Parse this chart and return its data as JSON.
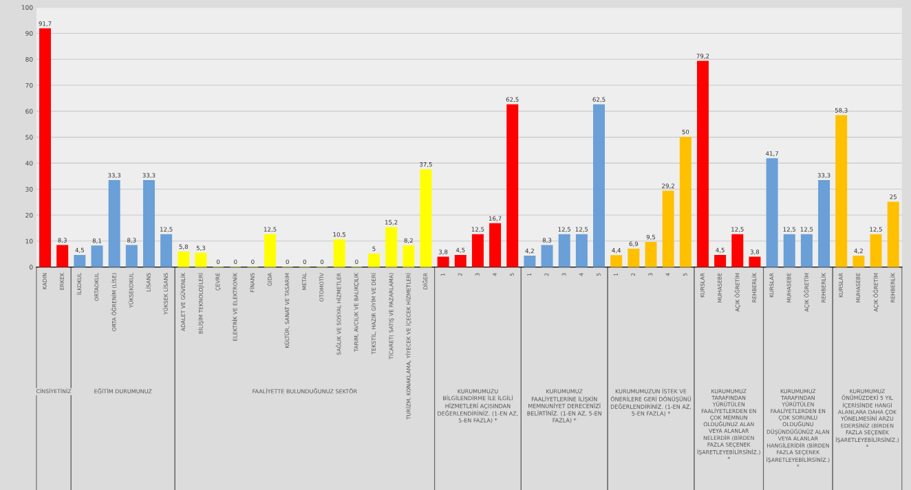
{
  "chart_data": {
    "type": "bar",
    "categories": [
      "KADIN",
      "ERKEK",
      "İLKOKUL",
      "ORTAOKUL",
      "ORTA ÖĞRENİM (LİSE)",
      "YÜKSEKOKUL",
      "LİSANS",
      "YÜKSEK LİSANS",
      "ADALET VE GÜVENLİK",
      "BİLİŞİM TEKNOLOJİLERİ",
      "ÇEVRE",
      "ELEKTRİK VE ELEKTRONİK",
      "FİNANS",
      "GIDA",
      "KÜLTÜR, SANAT VE TASARIM",
      "METAL",
      "OTOMOTİV",
      "SAĞLIK VE SOSYAL HİZMETLER",
      "TARIM, AVCILIK VE BALIKÇILIK",
      "TEKSTİL, HAZIR GİYİM VE DERİ",
      "TİCARET( SATIŞ VE PAZARLAMA)",
      "TURİZM, KONAKLAMA, YİYECEK VE İÇECEK HİZMETLERİ",
      "DİĞER",
      "1",
      "2",
      "3",
      "4",
      "5",
      "1",
      "2",
      "3",
      "4",
      "5",
      "1",
      "2",
      "3",
      "4",
      "5",
      "KURSLAR",
      "MUHASEBE",
      "AÇIK ÖĞRETİM",
      "REHBERLİK",
      "KURSLAR",
      "MUHASEBE",
      "AÇIK ÖĞRETİM",
      "REHBERLİK",
      "KURSLAR",
      "MUHASEBE",
      "AÇIK ÖĞRETİM",
      "REHBERLİK"
    ],
    "values": [
      91.7,
      8.3,
      4.5,
      8.1,
      33.3,
      8.3,
      33.3,
      12.5,
      5.8,
      5.3,
      0,
      0,
      0,
      12.5,
      0,
      0,
      0,
      10.5,
      0,
      5,
      15.2,
      8.2,
      37.5,
      3.8,
      4.5,
      12.5,
      16.7,
      62.5,
      4.2,
      8.3,
      12.5,
      12.5,
      62.5,
      4.4,
      6.9,
      9.5,
      29.2,
      50,
      79.2,
      4.5,
      12.5,
      3.8,
      41.7,
      12.5,
      12.5,
      33.3,
      58.3,
      4.2,
      12.5,
      25
    ],
    "value_labels": [
      "91,7",
      "8,3",
      "4,5",
      "8,1",
      "33,3",
      "8,3",
      "33,3",
      "12,5",
      "5,8",
      "5,3",
      "0",
      "0",
      "0",
      "12,5",
      "0",
      "0",
      "0",
      "10,5",
      "0",
      "5",
      "15,2",
      "8,2",
      "37,5",
      "3,8",
      "4,5",
      "12,5",
      "16,7",
      "62,5",
      "4,2",
      "8,3",
      "12,5",
      "12,5",
      "62,5",
      "4,4",
      "6,9",
      "9,5",
      "29,2",
      "50",
      "79,2",
      "4,5",
      "12,5",
      "3,8",
      "41,7",
      "12,5",
      "12,5",
      "33,3",
      "58,3",
      "4,2",
      "12,5",
      "25"
    ],
    "colors": [
      "#ff0000",
      "#ff0000",
      "#6a9fd8",
      "#6a9fd8",
      "#6a9fd8",
      "#6a9fd8",
      "#6a9fd8",
      "#6a9fd8",
      "#ffff00",
      "#ffff00",
      "#ffff00",
      "#ffff00",
      "#ffff00",
      "#ffff00",
      "#ffff00",
      "#ffff00",
      "#ffff00",
      "#ffff00",
      "#ffff00",
      "#ffff00",
      "#ffff00",
      "#ffff00",
      "#ffff00",
      "#ff0000",
      "#ff0000",
      "#ff0000",
      "#ff0000",
      "#ff0000",
      "#6a9fd8",
      "#6a9fd8",
      "#6a9fd8",
      "#6a9fd8",
      "#6a9fd8",
      "#ffc000",
      "#ffc000",
      "#ffc000",
      "#ffc000",
      "#ffc000",
      "#ff0000",
      "#ff0000",
      "#ff0000",
      "#ff0000",
      "#6a9fd8",
      "#6a9fd8",
      "#6a9fd8",
      "#6a9fd8",
      "#ffc000",
      "#ffc000",
      "#ffc000",
      "#ffc000"
    ],
    "annotations": [
      "CİNSİYETİNİZ",
      "EĞİTİM DURUMUNUZ",
      "FAALİYETTE BULUNDUĞUNUZ SEKTÖR",
      "KURUMUMUZU BİLGİLENDİRME İLE İLGİLİ HİZMETLERİ AÇISINDAN DEĞERLENDİRİNİZ. (1-EN AZ, 5-EN FAZLA) *",
      "KURUMUMUZ FAALİYETLERİNE İLİŞKİN MEMNUNİYET DERECENİZİ BELİRTİNİZ. (1-EN AZ, 5-EN FAZLA) *",
      "KURUMUMUZUN İSTEK VE ÖNERİLERE GERİ DÖNÜŞÜNÜ DEĞERLENDİRİNİZ. (1-EN AZ, 5-EN FAZLA) *",
      "KURUMUMUZ TARAFINDAN YÜRÜTÜLEN FAALİYETLERDEN EN ÇOK MEMNUN OLDUĞUNUZ ALAN VEYA ALANLAR NELERDİR (BİRDEN FAZLA SEÇENEK İŞARETLEYEBİLİRSİNİZ.) *",
      "KURUMUMUZ TARAFINDAN YÜRÜTÜLEN FAALİYETLERDEN EN ÇOK SORUNLU OLDUĞUNU DÜŞÜNDÜĞÜNÜZ ALAN VEYA ALANLAR HANGİLERİDİR (BİRDEN FAZLA SEÇENEK İŞARETLEYEBİLİRSİNİZ.) *",
      "KURUMUMUZ ÖNÜMÜZDEKİ 5 YIL İÇERİSİNDE HANGİ ALANLARA DAHA ÇOK YÖNELMESİNİ ARZU EDERSİNİZ (BİRDEN FAZLA SEÇENEK İŞARETLEYEBİLİRSİNİZ.) *"
    ],
    "ylim": [
      0,
      100
    ],
    "yticks": [
      0,
      10,
      20,
      30,
      40,
      50,
      60,
      70,
      80,
      90,
      100
    ],
    "grid": "y",
    "legend": false
  }
}
